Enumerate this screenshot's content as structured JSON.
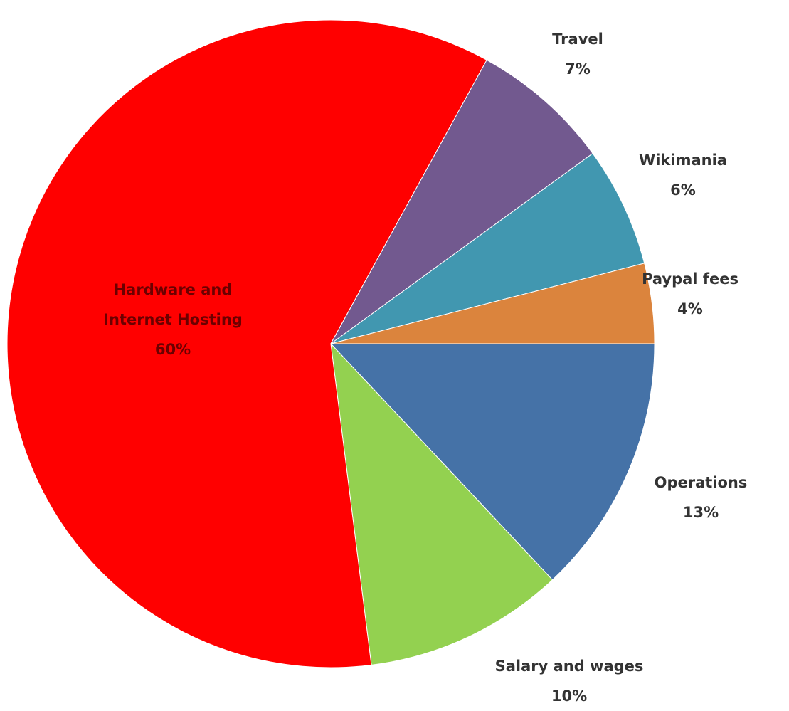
{
  "chart_data": {
    "type": "pie",
    "categories": [
      "Operations",
      "Salary and wages",
      "Hardware and Internet Hosting",
      "Travel",
      "Wikimania",
      "Paypal fees"
    ],
    "values": [
      13,
      10,
      60,
      7,
      6,
      4
    ],
    "value_labels": [
      "13%",
      "10%",
      "60%",
      "7%",
      "6%",
      "4%"
    ],
    "colors": [
      "#4572a7",
      "#93d150",
      "#ff0000",
      "#72598f",
      "#4197b0",
      "#db843d"
    ]
  }
}
